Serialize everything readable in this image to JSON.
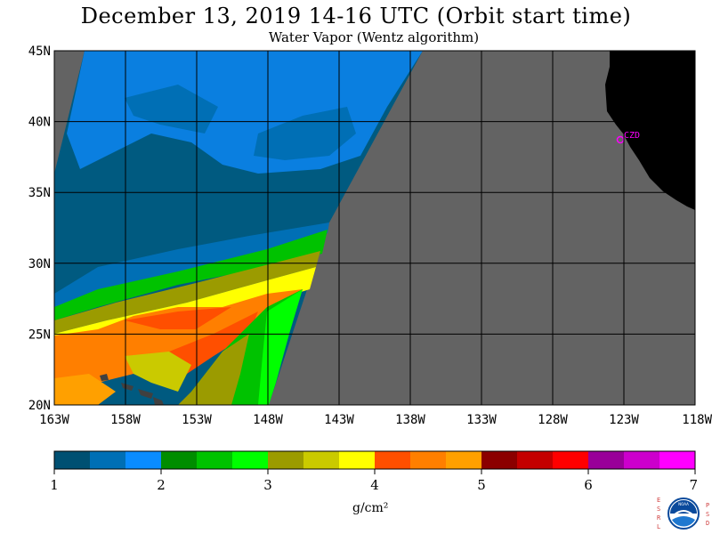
{
  "title": "December 13, 2019  14-16 UTC  (Orbit start time)",
  "subtitle": "Water Vapor (Wentz algorithm)",
  "map": {
    "lat_labels": [
      "45N",
      "40N",
      "35N",
      "30N",
      "25N",
      "20N"
    ],
    "lon_labels": [
      "163W",
      "158W",
      "153W",
      "148W",
      "143W",
      "138W",
      "133W",
      "128W",
      "123W",
      "118W"
    ],
    "lat_range": [
      20,
      45
    ],
    "lon_range": [
      -163,
      -118
    ],
    "station_label": "CZD",
    "colors": {
      "no_data": "#636363",
      "land": "#000000",
      "grid": "#000000",
      "station": "#ff00ff"
    }
  },
  "colorbar": {
    "unit": "g/cm²",
    "tick_labels": [
      "1",
      "2",
      "3",
      "4",
      "5",
      "6",
      "7"
    ],
    "range": [
      1,
      7
    ],
    "colors": [
      "#005072",
      "#006fb5",
      "#0a8cff",
      "#008d00",
      "#00c200",
      "#00ff00",
      "#9b9b00",
      "#caca00",
      "#ffff00",
      "#ff4f00",
      "#ff7f00",
      "#ffa000",
      "#8b0000",
      "#c40000",
      "#ff0000",
      "#990099",
      "#cc00cc",
      "#ff00ff"
    ]
  },
  "logo": {
    "left_letters": "ESRL",
    "right_letters": "PSD",
    "center_text": "NOAA"
  }
}
